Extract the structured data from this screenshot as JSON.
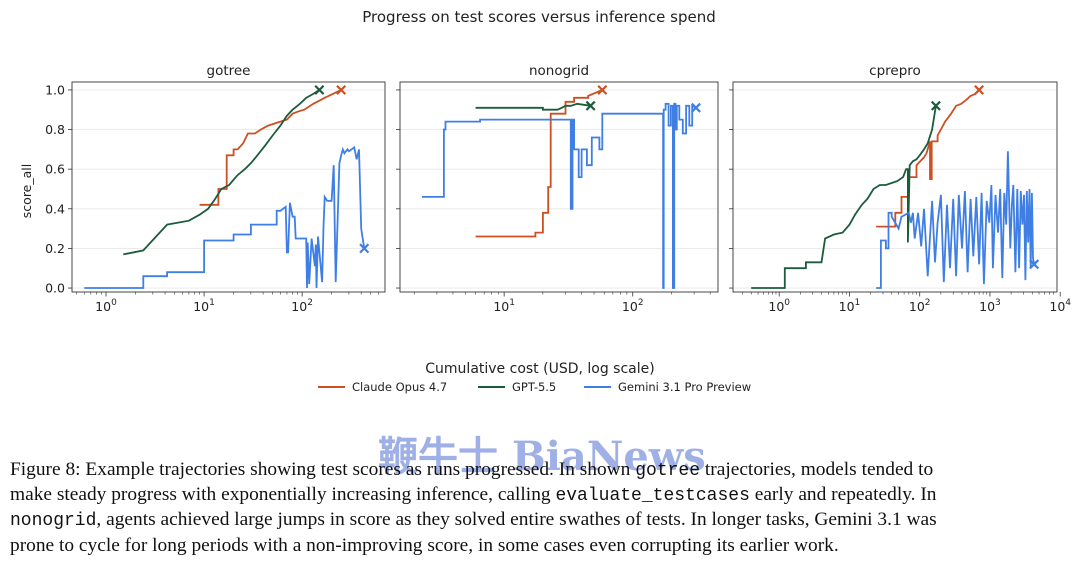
{
  "figure": {
    "suptitle": "Progress on test scores versus inference spend",
    "xlabel": "Cumulative cost (USD, log scale)",
    "ylabel": "score_all"
  },
  "legend": {
    "placement": "bottom-center",
    "entries": [
      {
        "name": "Claude Opus 4.7",
        "color": "#cc5022"
      },
      {
        "name": "GPT-5.5",
        "color": "#1c5c3c"
      },
      {
        "name": "Gemini 3.1 Pro Preview",
        "color": "#3f7fe4"
      }
    ]
  },
  "chart_data": [
    {
      "type": "line",
      "title": "gotree",
      "x_scale": "log",
      "xlim": [
        0.45,
        700
      ],
      "ylim": [
        -0.02,
        1.04
      ],
      "xticks": [
        1,
        10,
        100
      ],
      "xtick_labels": [
        "10^0",
        "10^1",
        "10^2"
      ],
      "yticks": [
        0.0,
        0.2,
        0.4,
        0.6,
        0.8,
        1.0
      ],
      "ytick_labels": [
        "0.0",
        "0.2",
        "0.4",
        "0.6",
        "0.8",
        "1.0"
      ],
      "grid": "horizontal",
      "series": [
        {
          "name": "Claude Opus 4.7",
          "color": "#cc5022",
          "end_marker": "x",
          "x": [
            9,
            14,
            14,
            17,
            17,
            20,
            20,
            22,
            25,
            28,
            33,
            38,
            45,
            52,
            60,
            70,
            80,
            90,
            105,
            130,
            170,
            250
          ],
          "y": [
            0.42,
            0.42,
            0.5,
            0.5,
            0.67,
            0.67,
            0.7,
            0.7,
            0.73,
            0.78,
            0.78,
            0.8,
            0.82,
            0.83,
            0.84,
            0.85,
            0.88,
            0.89,
            0.9,
            0.93,
            0.96,
            1.0
          ]
        },
        {
          "name": "GPT-5.5",
          "color": "#1c5c3c",
          "end_marker": "x",
          "x": [
            1.5,
            2.4,
            4.2,
            7,
            9,
            11,
            13,
            15,
            18,
            22,
            26,
            30,
            35,
            42,
            50,
            60,
            70,
            80,
            95,
            110,
            130,
            150
          ],
          "y": [
            0.17,
            0.19,
            0.32,
            0.34,
            0.37,
            0.4,
            0.45,
            0.5,
            0.52,
            0.57,
            0.6,
            0.63,
            0.67,
            0.72,
            0.77,
            0.82,
            0.87,
            0.9,
            0.93,
            0.96,
            0.98,
            1.0
          ]
        },
        {
          "name": "Gemini 3.1 Pro Preview",
          "color": "#3f7fe4",
          "end_marker": "x",
          "x": [
            0.6,
            2.4,
            2.4,
            4.2,
            4.2,
            10,
            10,
            20,
            20,
            30,
            30,
            55,
            55,
            60,
            68,
            70,
            72,
            75,
            80,
            84,
            86,
            88,
            95,
            110,
            112,
            114,
            118,
            125,
            135,
            138,
            140,
            145,
            160,
            165,
            170,
            180,
            200,
            210,
            220,
            240,
            250,
            260,
            270,
            290,
            300,
            340,
            360,
            380,
            400,
            430
          ],
          "y": [
            0.0,
            0.0,
            0.06,
            0.06,
            0.08,
            0.08,
            0.24,
            0.24,
            0.27,
            0.27,
            0.32,
            0.32,
            0.39,
            0.39,
            0.41,
            0.18,
            0.18,
            0.43,
            0.36,
            0.36,
            0.25,
            0.25,
            0.25,
            0.25,
            0.0,
            0.23,
            0.02,
            0.25,
            0.11,
            0.22,
            0.0,
            0.26,
            0.03,
            0.31,
            0.46,
            0.44,
            0.44,
            0.62,
            0.03,
            0.63,
            0.67,
            0.7,
            0.68,
            0.7,
            0.69,
            0.71,
            0.65,
            0.7,
            0.3,
            0.2
          ]
        }
      ]
    },
    {
      "type": "line",
      "title": "nonogrid",
      "x_scale": "log",
      "xlim": [
        1.55,
        460
      ],
      "ylim": [
        -0.02,
        1.04
      ],
      "xticks": [
        10,
        100
      ],
      "xtick_labels": [
        "10^1",
        "10^2"
      ],
      "yticks": [
        0.0,
        0.2,
        0.4,
        0.6,
        0.8,
        1.0
      ],
      "ytick_labels": [
        "0.0",
        "0.2",
        "0.4",
        "0.6",
        "0.8",
        "1.0"
      ],
      "grid": "horizontal",
      "series": [
        {
          "name": "Claude Opus 4.7",
          "color": "#cc5022",
          "end_marker": "x",
          "x": [
            6,
            17.5,
            17.5,
            20,
            20,
            22,
            22,
            23,
            23,
            30,
            30,
            35,
            35,
            45,
            45,
            58
          ],
          "y": [
            0.26,
            0.26,
            0.28,
            0.28,
            0.38,
            0.38,
            0.51,
            0.51,
            0.88,
            0.88,
            0.94,
            0.94,
            0.96,
            0.96,
            0.97,
            1.0
          ]
        },
        {
          "name": "GPT-5.5",
          "color": "#1c5c3c",
          "end_marker": "x",
          "x": [
            6,
            20,
            20,
            26,
            28,
            30,
            33,
            37,
            47
          ],
          "y": [
            0.91,
            0.91,
            0.9,
            0.9,
            0.91,
            0.92,
            0.92,
            0.93,
            0.92
          ]
        },
        {
          "name": "Gemini 3.1 Pro Preview",
          "color": "#3f7fe4",
          "end_marker": "x",
          "x": [
            2.3,
            3.4,
            3.4,
            3.5,
            3.5,
            6.5,
            6.5,
            33,
            33,
            34,
            34,
            35,
            35,
            38,
            38,
            40,
            40,
            44,
            44,
            48,
            48,
            55,
            55,
            58,
            58,
            80,
            80,
            172,
            172,
            174,
            174,
            180,
            180,
            190,
            190,
            198,
            198,
            205,
            205,
            210,
            210,
            215,
            215,
            220,
            220,
            230,
            230,
            245,
            245,
            260,
            260,
            275,
            275,
            290,
            290,
            310
          ],
          "y": [
            0.46,
            0.46,
            0.8,
            0.8,
            0.84,
            0.84,
            0.85,
            0.85,
            0.4,
            0.4,
            0.85,
            0.85,
            0.7,
            0.7,
            0.56,
            0.56,
            0.7,
            0.7,
            0.62,
            0.62,
            0.76,
            0.76,
            0.7,
            0.7,
            0.88,
            0.88,
            0.88,
            0.88,
            0.0,
            0.0,
            0.9,
            0.9,
            0.93,
            0.93,
            0.82,
            0.82,
            0.92,
            0.92,
            0.0,
            0.0,
            0.93,
            0.93,
            0.8,
            0.8,
            0.92,
            0.92,
            0.85,
            0.85,
            0.78,
            0.78,
            0.92,
            0.92,
            0.82,
            0.82,
            0.92,
            0.91
          ]
        }
      ]
    },
    {
      "type": "line",
      "title": "cprepro",
      "x_scale": "log",
      "xlim": [
        0.22,
        9000
      ],
      "ylim": [
        -0.02,
        1.04
      ],
      "xticks": [
        1,
        10,
        100,
        1000,
        10000
      ],
      "xtick_labels": [
        "10^0",
        "10^1",
        "10^2",
        "10^3",
        "10^4"
      ],
      "yticks": [
        0.0,
        0.2,
        0.4,
        0.6,
        0.8,
        1.0
      ],
      "ytick_labels": [
        "0.0",
        "0.2",
        "0.4",
        "0.6",
        "0.8",
        "1.0"
      ],
      "grid": "horizontal",
      "series": [
        {
          "name": "Claude Opus 4.7",
          "color": "#cc5022",
          "end_marker": "x",
          "x": [
            24,
            38,
            38,
            45,
            45,
            55,
            55,
            70,
            70,
            90,
            90,
            115,
            125,
            140,
            140,
            148,
            148,
            180,
            180,
            200,
            230,
            280,
            330,
            390,
            460,
            530,
            620,
            700
          ],
          "y": [
            0.31,
            0.31,
            0.31,
            0.31,
            0.38,
            0.38,
            0.46,
            0.46,
            0.56,
            0.56,
            0.62,
            0.66,
            0.68,
            0.74,
            0.55,
            0.55,
            0.74,
            0.74,
            0.77,
            0.8,
            0.84,
            0.88,
            0.92,
            0.93,
            0.95,
            0.97,
            0.98,
            1.0
          ]
        },
        {
          "name": "GPT-5.5",
          "color": "#1c5c3c",
          "end_marker": "x",
          "x": [
            0.4,
            1.2,
            1.2,
            2.4,
            2.4,
            4,
            4.5,
            6,
            8,
            10,
            12,
            15,
            18,
            22,
            27,
            33,
            40,
            48,
            58,
            64,
            68,
            68,
            72,
            80,
            90,
            100,
            115,
            130,
            150,
            170
          ],
          "y": [
            0.0,
            0.0,
            0.1,
            0.1,
            0.13,
            0.13,
            0.25,
            0.27,
            0.28,
            0.32,
            0.37,
            0.42,
            0.45,
            0.5,
            0.52,
            0.52,
            0.53,
            0.54,
            0.56,
            0.6,
            0.6,
            0.23,
            0.62,
            0.64,
            0.65,
            0.67,
            0.7,
            0.73,
            0.8,
            0.92
          ]
        },
        {
          "name": "Gemini 3.1 Pro Preview",
          "color": "#3f7fe4",
          "end_marker": "x",
          "x": [
            24,
            28,
            28,
            33,
            33,
            36,
            36,
            40,
            40,
            50,
            55,
            70,
            75,
            80,
            85,
            95,
            105,
            115,
            130,
            150,
            165,
            180,
            200,
            220,
            245,
            270,
            300,
            330,
            360,
            400,
            440,
            480,
            530,
            580,
            640,
            700,
            760,
            820,
            900,
            980,
            1050,
            1100,
            1200,
            1300,
            1400,
            1500,
            1600,
            1700,
            1800,
            1950,
            2050,
            2150,
            2300,
            2450,
            2600,
            2750,
            2900,
            3050,
            3200,
            3350,
            3500,
            3650,
            3800,
            3950,
            4100,
            4250
          ],
          "y": [
            0.0,
            0.0,
            0.24,
            0.24,
            0.2,
            0.2,
            0.38,
            0.38,
            0.36,
            0.3,
            0.36,
            0.38,
            0.33,
            0.38,
            0.25,
            0.38,
            0.21,
            0.4,
            0.06,
            0.44,
            0.13,
            0.33,
            0.47,
            0.03,
            0.42,
            0.1,
            0.45,
            0.06,
            0.47,
            0.2,
            0.49,
            0.08,
            0.45,
            0.16,
            0.46,
            0.12,
            0.48,
            0.02,
            0.44,
            0.33,
            0.52,
            0.1,
            0.47,
            0.28,
            0.5,
            0.05,
            0.48,
            0.32,
            0.69,
            0.2,
            0.42,
            0.52,
            0.08,
            0.5,
            0.1,
            0.49,
            0.32,
            0.47,
            0.04,
            0.49,
            0.23,
            0.5,
            0.1,
            0.48,
            0.15,
            0.12
          ]
        }
      ]
    }
  ],
  "caption": {
    "lines": [
      [
        {
          "text": "Figure 8: Example trajectories showing test scores as runs progressed. In shown "
        },
        {
          "text": "gotree",
          "mono": true
        },
        {
          "text": " trajectories, models tended to"
        }
      ],
      [
        {
          "text": "make steady progress with exponentially increasing inference, calling "
        },
        {
          "text": "evaluate_testcases",
          "mono": true
        },
        {
          "text": " early and repeatedly. In"
        }
      ],
      [
        {
          "text": "nonogrid",
          "mono": true
        },
        {
          "text": ", agents achieved large jumps in score as they solved entire swathes of tests. In longer tasks, Gemini 3.1 was"
        }
      ],
      [
        {
          "text": "prone to cycle for long periods with a non-improving score, in some cases even corrupting its earlier work."
        }
      ]
    ]
  },
  "watermark": {
    "text": "鞭牛士 BiaNews"
  }
}
